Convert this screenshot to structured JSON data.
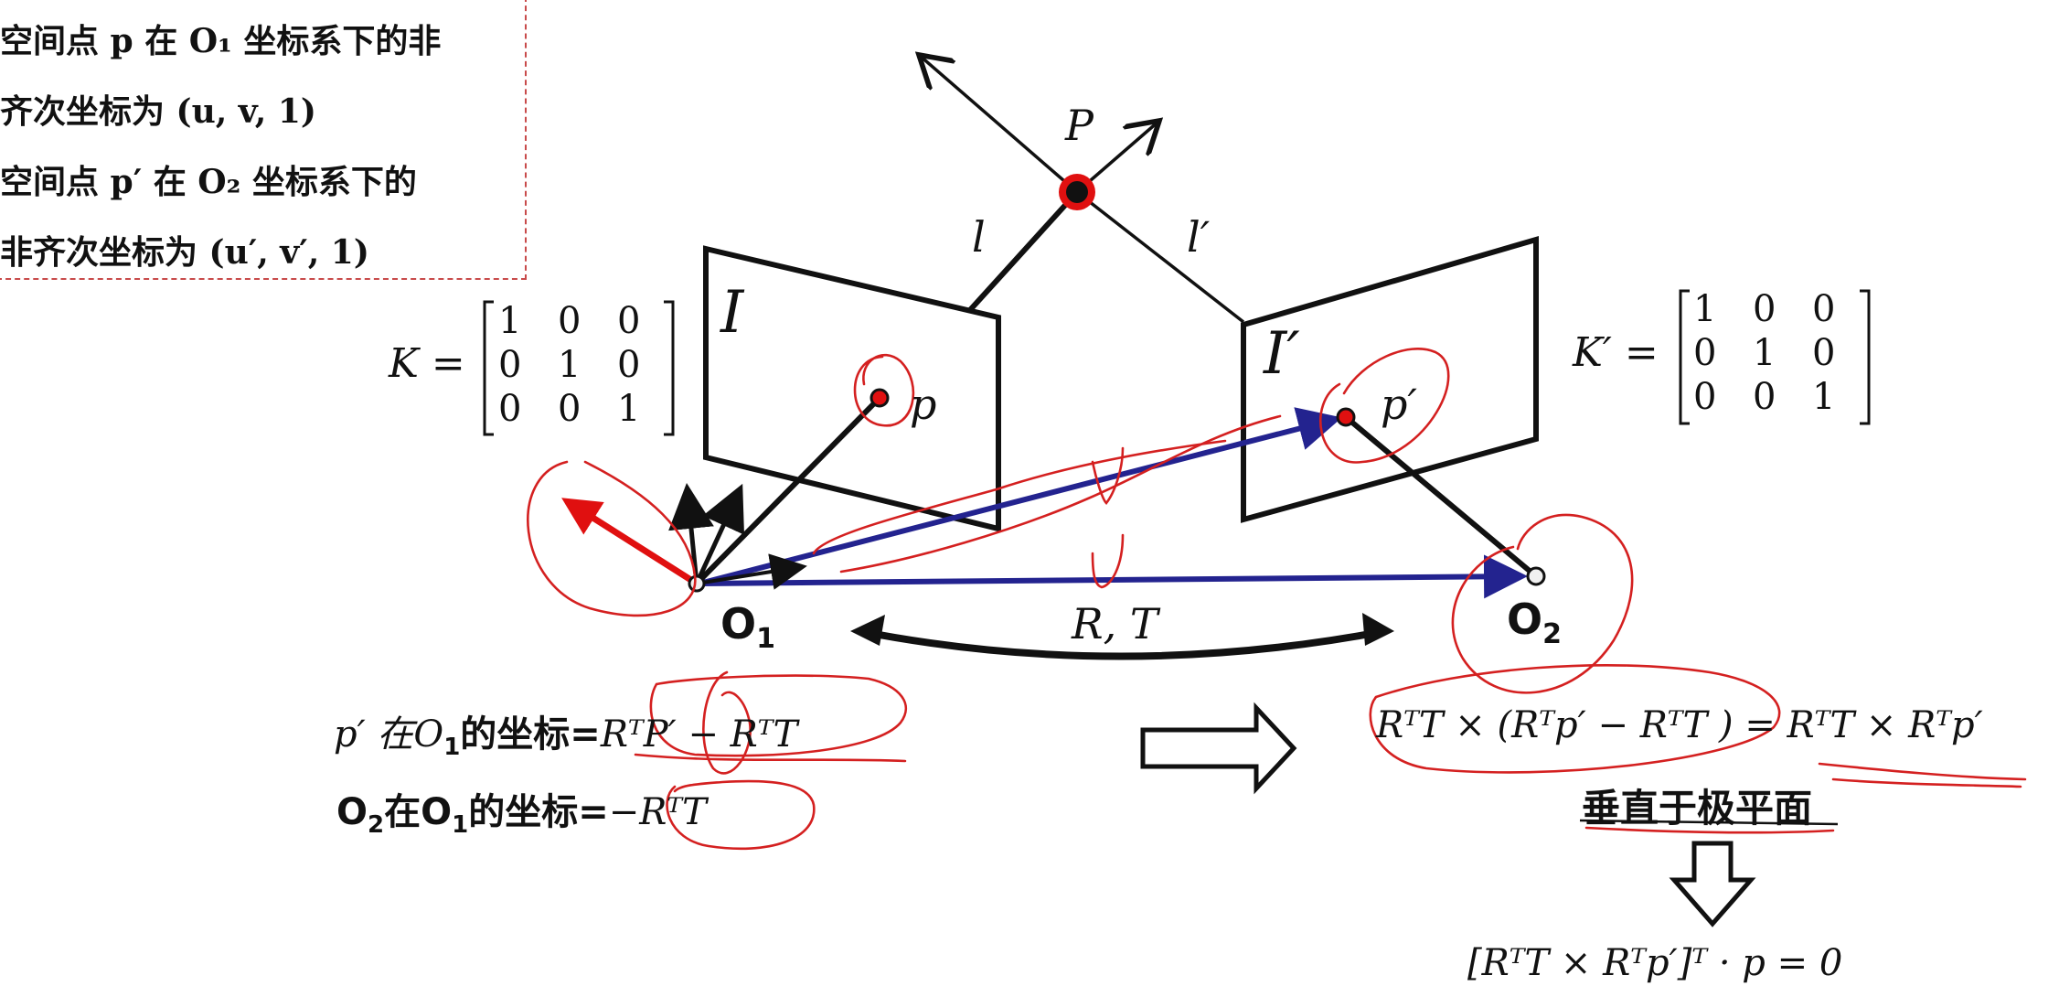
{
  "notes": {
    "line1": "空间点 p 在 O₁ 坐标系下的非",
    "line2": "齐次坐标为 (u, v, 1)",
    "line3": "空间点 p′ 在 O₂ 坐标系下的",
    "line4": "非齐次坐标为 (u′, v′, 1)"
  },
  "labels": {
    "P": "P",
    "l": "l",
    "l_prime": "l′",
    "I": "I",
    "I_prime": "I′",
    "p": "p",
    "p_prime": "p′",
    "O1": "O",
    "O1_sub": "1",
    "O2": "O",
    "O2_sub": "2",
    "RT": "R, T"
  },
  "matrices": {
    "K_label": "K =",
    "K_prime_label": "K′ =",
    "K_rows": [
      [
        "1",
        "0",
        "0"
      ],
      [
        "0",
        "1",
        "0"
      ],
      [
        "0",
        "0",
        "1"
      ]
    ],
    "K_prime_rows": [
      [
        "1",
        "0",
        "0"
      ],
      [
        "0",
        "1",
        "0"
      ],
      [
        "0",
        "0",
        "1"
      ]
    ]
  },
  "equations": {
    "eq1_prefix": "p′ 在O",
    "eq1_sub": "1",
    "eq1_mid": "的坐标=",
    "eq1_rhs": "RᵀP′ − RᵀT",
    "eq2_prefix": "O",
    "eq2_sub1": "2",
    "eq2_mid": "在O",
    "eq2_sub2": "1",
    "eq2_suffix": "的坐标=",
    "eq2_rhs": "−RᵀT",
    "eq3": "RᵀT × (Rᵀp′ − RᵀT ) = RᵀT × Rᵀp′",
    "perp": "垂直于极平面",
    "final": "[RᵀT × Rᵀp′]ᵀ · p = 0"
  },
  "colors": {
    "ink": "#111111",
    "annotation_red": "#d42020",
    "vector_blue": "#23238f",
    "axis_red": "#e01010"
  }
}
